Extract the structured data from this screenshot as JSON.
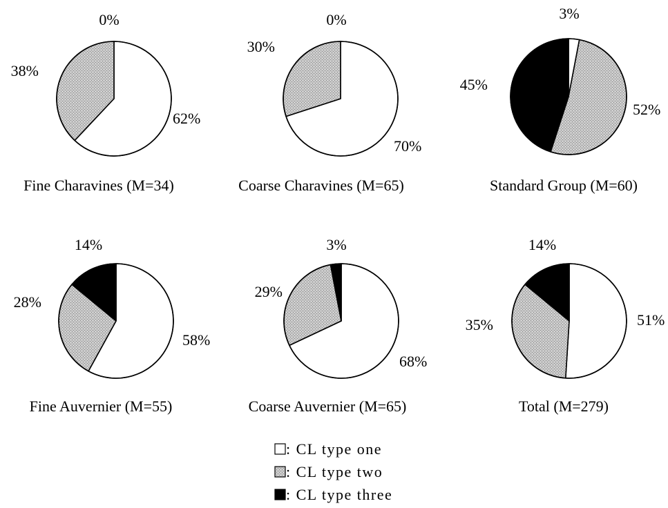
{
  "chart_data": [
    {
      "type": "pie",
      "title": "Fine Charavines (M=34)",
      "slices": [
        {
          "label": "CL type one",
          "value": 62,
          "text": "62%"
        },
        {
          "label": "CL type two",
          "value": 38,
          "text": "38%"
        },
        {
          "label": "CL type three",
          "value": 0,
          "text": "0%"
        }
      ]
    },
    {
      "type": "pie",
      "title": "Coarse Charavines (M=65)",
      "slices": [
        {
          "label": "CL type one",
          "value": 70,
          "text": "70%"
        },
        {
          "label": "CL type two",
          "value": 30,
          "text": "30%"
        },
        {
          "label": "CL type three",
          "value": 0,
          "text": "0%"
        }
      ]
    },
    {
      "type": "pie",
      "title": "Standard Group (M=60)",
      "slices": [
        {
          "label": "CL type one",
          "value": 3,
          "text": "3%"
        },
        {
          "label": "CL type two",
          "value": 52,
          "text": "52%"
        },
        {
          "label": "CL type three",
          "value": 45,
          "text": "45%"
        }
      ]
    },
    {
      "type": "pie",
      "title": "Fine Auvernier (M=55)",
      "slices": [
        {
          "label": "CL type one",
          "value": 58,
          "text": "58%"
        },
        {
          "label": "CL type two",
          "value": 28,
          "text": "28%"
        },
        {
          "label": "CL type three",
          "value": 14,
          "text": "14%"
        }
      ]
    },
    {
      "type": "pie",
      "title": "Coarse Auvernier (M=65)",
      "slices": [
        {
          "label": "CL type one",
          "value": 68,
          "text": "68%"
        },
        {
          "label": "CL type two",
          "value": 29,
          "text": "29%"
        },
        {
          "label": "CL type three",
          "value": 3,
          "text": "3%"
        }
      ]
    },
    {
      "type": "pie",
      "title": "Total (M=279)",
      "slices": [
        {
          "label": "CL type one",
          "value": 51,
          "text": "51%"
        },
        {
          "label": "CL type two",
          "value": 35,
          "text": "35%"
        },
        {
          "label": "CL type three",
          "value": 14,
          "text": "14%"
        }
      ]
    }
  ],
  "legend": {
    "placement": "bottom-center",
    "items": [
      {
        "key": "type_one",
        "label": ": CL type one",
        "color": "#ffffff"
      },
      {
        "key": "type_two",
        "label": ": CL type two",
        "color": "#b8b8b8"
      },
      {
        "key": "type_three",
        "label": ": CL type three",
        "color": "#000000"
      }
    ]
  },
  "colors": {
    "type_one": "#ffffff",
    "type_two": "#b8b8b8",
    "type_three": "#000000",
    "outline": "#000000"
  }
}
